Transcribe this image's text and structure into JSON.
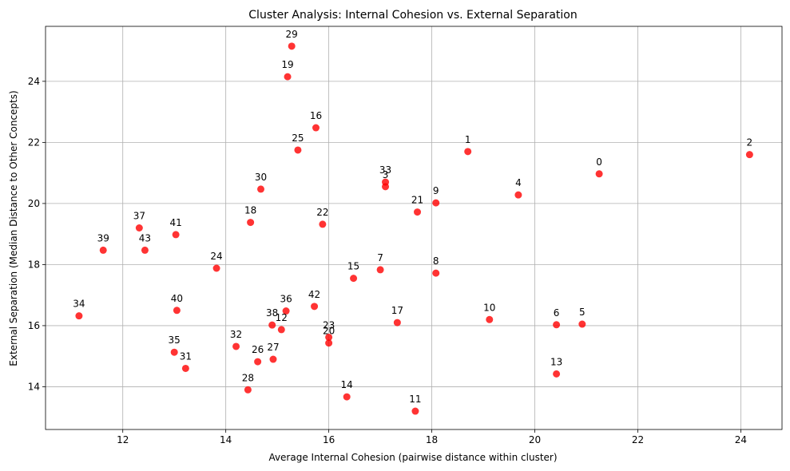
{
  "chart_data": {
    "type": "scatter",
    "title": "Cluster Analysis: Internal Cohesion vs. External Separation",
    "xlabel": "Average Internal Cohesion (pairwise distance within cluster)",
    "ylabel": "External Separation (Median Distance to Other Concepts)",
    "xlim": [
      10.5,
      24.8
    ],
    "ylim": [
      12.6,
      25.8
    ],
    "xticks": [
      12,
      14,
      16,
      18,
      20,
      22,
      24
    ],
    "yticks": [
      14,
      16,
      18,
      20,
      22,
      24
    ],
    "grid": true,
    "point_color": "#ff0000",
    "points": [
      {
        "label": "0",
        "x": 21.25,
        "y": 20.97
      },
      {
        "label": "1",
        "x": 18.7,
        "y": 21.7
      },
      {
        "label": "2",
        "x": 24.17,
        "y": 21.6
      },
      {
        "label": "3",
        "x": 17.1,
        "y": 20.55
      },
      {
        "label": "4",
        "x": 19.68,
        "y": 20.28
      },
      {
        "label": "5",
        "x": 20.92,
        "y": 16.05
      },
      {
        "label": "6",
        "x": 20.42,
        "y": 16.03
      },
      {
        "label": "7",
        "x": 17.0,
        "y": 17.83
      },
      {
        "label": "8",
        "x": 18.08,
        "y": 17.72
      },
      {
        "label": "9",
        "x": 18.08,
        "y": 20.02
      },
      {
        "label": "10",
        "x": 19.12,
        "y": 16.2
      },
      {
        "label": "11",
        "x": 17.68,
        "y": 13.2
      },
      {
        "label": "12",
        "x": 15.08,
        "y": 15.87
      },
      {
        "label": "13",
        "x": 20.42,
        "y": 14.42
      },
      {
        "label": "14",
        "x": 16.35,
        "y": 13.67
      },
      {
        "label": "15",
        "x": 16.48,
        "y": 17.55
      },
      {
        "label": "16",
        "x": 15.75,
        "y": 22.48
      },
      {
        "label": "17",
        "x": 17.33,
        "y": 16.1
      },
      {
        "label": "18",
        "x": 14.48,
        "y": 19.38
      },
      {
        "label": "19",
        "x": 15.2,
        "y": 24.15
      },
      {
        "label": "20",
        "x": 16.0,
        "y": 15.43
      },
      {
        "label": "21",
        "x": 17.72,
        "y": 19.72
      },
      {
        "label": "22",
        "x": 15.88,
        "y": 19.32
      },
      {
        "label": "23",
        "x": 16.0,
        "y": 15.62
      },
      {
        "label": "24",
        "x": 13.82,
        "y": 17.88
      },
      {
        "label": "25",
        "x": 15.4,
        "y": 21.75
      },
      {
        "label": "26",
        "x": 14.62,
        "y": 14.82
      },
      {
        "label": "27",
        "x": 14.92,
        "y": 14.9
      },
      {
        "label": "28",
        "x": 14.43,
        "y": 13.9
      },
      {
        "label": "29",
        "x": 15.28,
        "y": 25.15
      },
      {
        "label": "30",
        "x": 14.68,
        "y": 20.47
      },
      {
        "label": "31",
        "x": 13.22,
        "y": 14.6
      },
      {
        "label": "32",
        "x": 14.2,
        "y": 15.32
      },
      {
        "label": "33",
        "x": 17.1,
        "y": 20.7
      },
      {
        "label": "34",
        "x": 11.15,
        "y": 16.32
      },
      {
        "label": "35",
        "x": 13.0,
        "y": 15.13
      },
      {
        "label": "36",
        "x": 15.17,
        "y": 16.48
      },
      {
        "label": "37",
        "x": 12.32,
        "y": 19.2
      },
      {
        "label": "38",
        "x": 14.9,
        "y": 16.02
      },
      {
        "label": "39",
        "x": 11.62,
        "y": 18.47
      },
      {
        "label": "40",
        "x": 13.05,
        "y": 16.5
      },
      {
        "label": "41",
        "x": 13.03,
        "y": 18.98
      },
      {
        "label": "42",
        "x": 15.72,
        "y": 16.63
      },
      {
        "label": "43",
        "x": 12.43,
        "y": 18.47
      }
    ]
  }
}
